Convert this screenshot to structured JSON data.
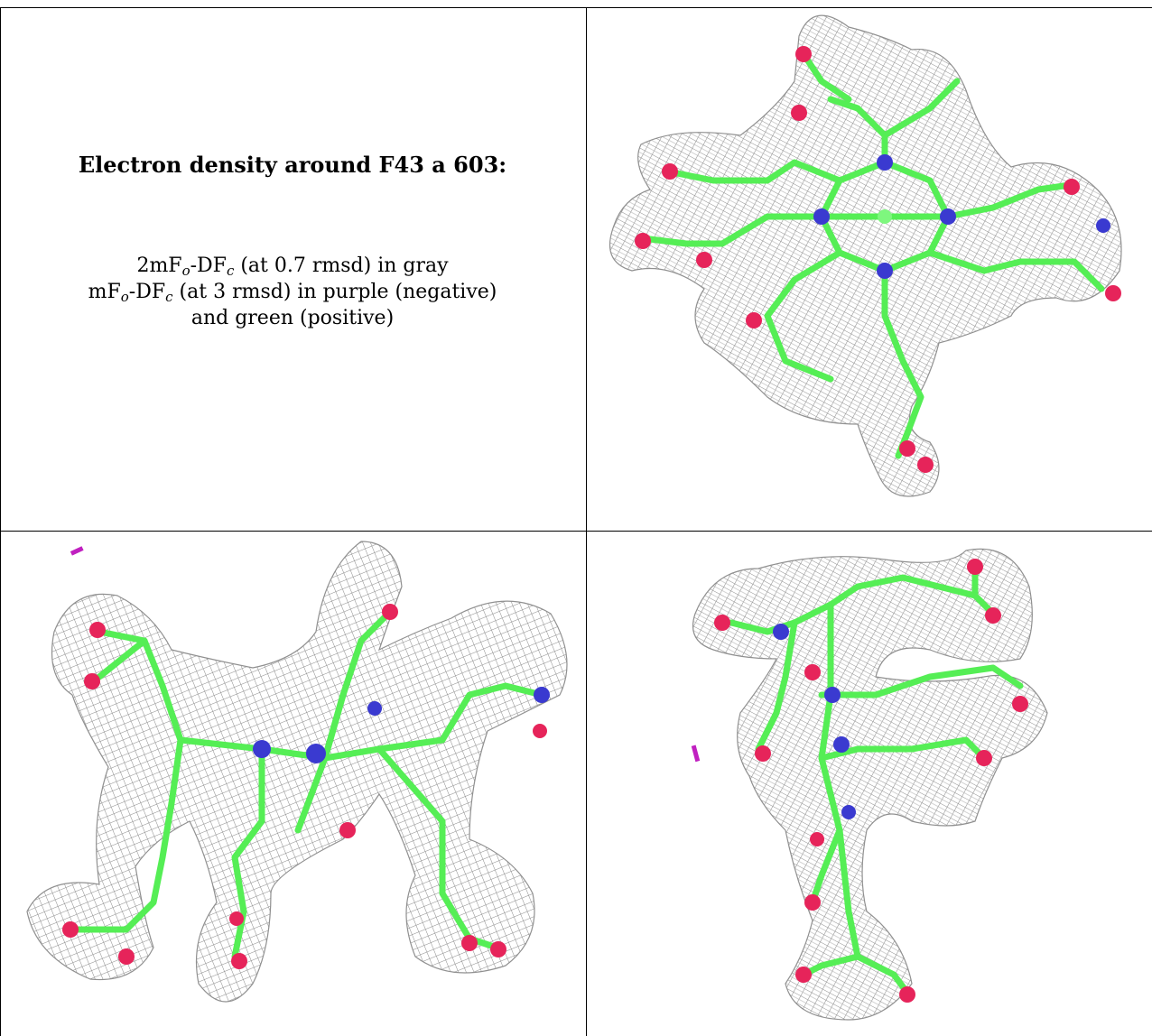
{
  "caption": {
    "title": "Electron density around F43 a 603:",
    "line1": {
      "a": "2mF",
      "o": "o",
      "b": "-DF",
      "c": "c",
      "rest": " (at 0.7 rmsd) in gray"
    },
    "line2": {
      "a": "mF",
      "o": "o",
      "b": "-DF",
      "c": "c",
      "rest": " (at 3 rmsd) in purple (negative)"
    },
    "line3": "and green (positive)"
  },
  "colors": {
    "mesh": "#9a9a9a",
    "carbon": "#55ee55",
    "oxygen": "#e6245a",
    "nitrogen": "#3a3ad0",
    "negative": "#c020c0",
    "border": "#000000"
  },
  "panels": [
    {
      "name": "top-right-view",
      "icon": "molecule-density-icon"
    },
    {
      "name": "bottom-left-view",
      "icon": "molecule-density-icon"
    },
    {
      "name": "bottom-right-view",
      "icon": "molecule-density-icon"
    }
  ]
}
